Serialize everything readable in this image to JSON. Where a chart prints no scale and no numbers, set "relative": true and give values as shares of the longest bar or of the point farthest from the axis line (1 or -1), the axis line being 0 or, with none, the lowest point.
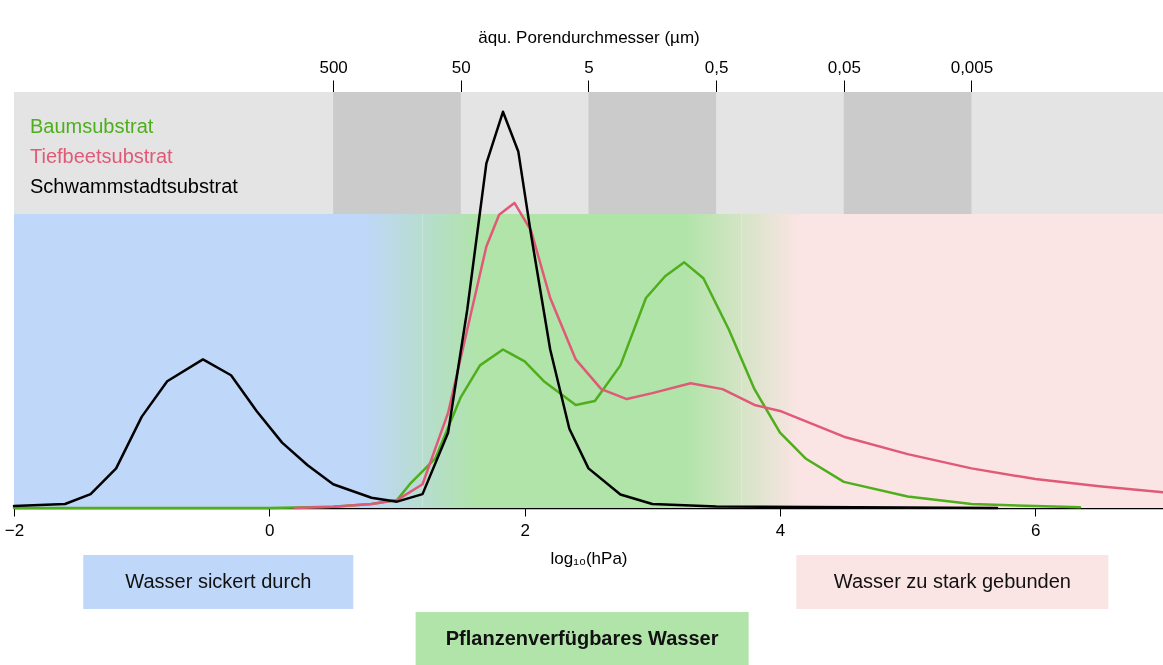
{
  "chart_data": {
    "type": "line",
    "relative": true,
    "xlabel": "log₁₀(hPa)",
    "x2label": "äqu. Porendurchmesser (µm)",
    "xlim": [
      -2,
      7
    ],
    "xticks": [
      -2,
      0,
      2,
      4,
      6
    ],
    "x2lim": [
      158000,
      0.000158
    ],
    "x2ticks": [
      500,
      50,
      5,
      {
        "value": 0.5,
        "label": "0,5"
      },
      {
        "value": 0.05,
        "label": "0,05"
      },
      {
        "value": 0.005,
        "label": "0,005"
      }
    ],
    "log": "x2",
    "legend": "top left",
    "bands": [
      {
        "axis": "x2",
        "from": 158000,
        "to": 0.000158,
        "color": "#e4e4e4"
      },
      {
        "axis": "x2",
        "from": 500,
        "to": 50,
        "color": "#cbcbcb"
      },
      {
        "axis": "x2",
        "from": 5,
        "to": 0.5,
        "color": "#cbcbcb"
      },
      {
        "axis": "x2",
        "from": 0.05,
        "to": 0.005,
        "color": "#cbcbcb"
      },
      {
        "axis": "x",
        "from": -2,
        "to": 1.2,
        "color": "#bfd7f8"
      },
      {
        "axis": "x",
        "from": 1.2,
        "to": 3.7,
        "color": "#b0e4a8"
      },
      {
        "axis": "x",
        "from": 3.7,
        "to": 7,
        "color": "#fbe4e4"
      }
    ],
    "annotations": [
      "Wasser sickert durch",
      "Pflanzenverfügbares Wasser",
      "Wasser zu stark gebunden"
    ],
    "series": [
      {
        "name": "Baumsubstrat",
        "color": "#4fae1c",
        "x": [
          -2,
          0,
          0.5,
          0.8,
          1.0,
          1.1,
          1.3,
          1.5,
          1.65,
          1.83,
          2.0,
          2.15,
          2.4,
          2.55,
          2.75,
          2.95,
          3.1,
          3.25,
          3.4,
          3.6,
          3.8,
          4.0,
          4.2,
          4.5,
          5.0,
          5.5,
          6.0,
          6.35
        ],
        "values": [
          0,
          0,
          0.003,
          0.01,
          0.02,
          0.06,
          0.125,
          0.28,
          0.36,
          0.4,
          0.37,
          0.32,
          0.26,
          0.27,
          0.36,
          0.53,
          0.585,
          0.62,
          0.58,
          0.45,
          0.3,
          0.19,
          0.125,
          0.066,
          0.029,
          0.01,
          0.005,
          0.002
        ]
      },
      {
        "name": "Tiefbeetsubstrat",
        "color": "#e05a78",
        "x": [
          0.2,
          0.5,
          0.8,
          1.0,
          1.2,
          1.4,
          1.55,
          1.7,
          1.8,
          1.92,
          2.05,
          2.2,
          2.4,
          2.6,
          2.8,
          3.0,
          3.3,
          3.55,
          3.8,
          4.0,
          4.5,
          5.0,
          5.5,
          6.0,
          6.5,
          7.0
        ],
        "values": [
          0,
          0.003,
          0.01,
          0.02,
          0.06,
          0.24,
          0.45,
          0.66,
          0.74,
          0.77,
          0.7,
          0.53,
          0.375,
          0.3,
          0.275,
          0.29,
          0.315,
          0.3,
          0.26,
          0.245,
          0.18,
          0.136,
          0.1,
          0.073,
          0.055,
          0.04
        ]
      },
      {
        "name": "Schwammstadtsubstrat",
        "color": "#000000",
        "x": [
          -2,
          -1.6,
          -1.4,
          -1.2,
          -1.0,
          -0.8,
          -0.52,
          -0.3,
          -0.1,
          0.1,
          0.3,
          0.5,
          0.8,
          1.0,
          1.2,
          1.4,
          1.55,
          1.7,
          1.83,
          1.95,
          2.05,
          2.2,
          2.35,
          2.5,
          2.75,
          3.0,
          3.5,
          5.7
        ],
        "values": [
          0.005,
          0.01,
          0.035,
          0.1,
          0.23,
          0.32,
          0.375,
          0.335,
          0.245,
          0.165,
          0.108,
          0.06,
          0.026,
          0.016,
          0.035,
          0.19,
          0.5,
          0.87,
          1.0,
          0.9,
          0.69,
          0.4,
          0.2,
          0.1,
          0.034,
          0.01,
          0.004,
          0
        ]
      }
    ]
  }
}
